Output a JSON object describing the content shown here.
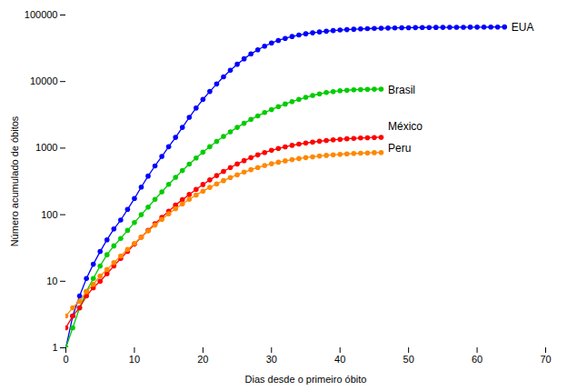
{
  "chart_data": {
    "type": "line",
    "xlabel": "Dias desde o primeiro óbito",
    "ylabel": "Número acumulado de óbitos",
    "log": "y",
    "grid": false,
    "marker": "circle",
    "line_style": "solid",
    "xlim": [
      0,
      70
    ],
    "ylim": [
      1,
      100000
    ],
    "xticks": [
      0,
      10,
      20,
      30,
      40,
      50,
      60,
      70
    ],
    "yticks": [
      1,
      10,
      100,
      1000,
      10000,
      100000
    ],
    "series": [
      {
        "name": "EUA",
        "color": "#0000FF",
        "x": [
          0,
          1,
          2,
          3,
          4,
          5,
          6,
          7,
          8,
          9,
          10,
          11,
          12,
          13,
          14,
          15,
          16,
          17,
          18,
          19,
          20,
          21,
          22,
          23,
          24,
          25,
          26,
          27,
          28,
          29,
          30,
          31,
          32,
          33,
          34,
          35,
          36,
          37,
          38,
          39,
          40,
          41,
          42,
          43,
          44,
          45,
          46,
          47,
          48,
          49,
          50,
          51,
          52,
          53,
          54,
          55,
          56,
          57,
          58,
          59,
          60,
          61,
          62,
          63,
          64
        ],
        "values": [
          1,
          3,
          6,
          11,
          18,
          28,
          42,
          61,
          83,
          120,
          175,
          260,
          380,
          540,
          750,
          1050,
          1450,
          2050,
          2900,
          4000,
          5400,
          7100,
          9200,
          11800,
          14800,
          18200,
          22000,
          26000,
          30000,
          34000,
          38000,
          41500,
          44500,
          47500,
          50000,
          52200,
          54000,
          55600,
          57000,
          58300,
          59400,
          60300,
          61100,
          61800,
          62400,
          62900,
          63300,
          63700,
          64000,
          64300,
          64500,
          64700,
          64900,
          65000,
          65100,
          65200,
          65300,
          65400,
          65500,
          65600,
          65700,
          65800,
          65900,
          66000,
          66100
        ]
      },
      {
        "name": "Brasil",
        "color": "#00CC00",
        "x": [
          0,
          1,
          2,
          3,
          4,
          5,
          6,
          7,
          8,
          9,
          10,
          11,
          12,
          13,
          14,
          15,
          16,
          17,
          18,
          19,
          20,
          21,
          22,
          23,
          24,
          25,
          26,
          27,
          28,
          29,
          30,
          31,
          32,
          33,
          34,
          35,
          36,
          37,
          38,
          39,
          40,
          41,
          42,
          43,
          44,
          45,
          46
        ],
        "values": [
          1,
          2,
          4,
          7,
          11,
          17,
          25,
          34,
          44,
          58,
          76,
          100,
          130,
          170,
          220,
          285,
          365,
          460,
          575,
          710,
          870,
          1050,
          1260,
          1500,
          1760,
          2050,
          2360,
          2700,
          3050,
          3420,
          3800,
          4200,
          4600,
          5000,
          5400,
          5800,
          6180,
          6530,
          6830,
          7080,
          7280,
          7420,
          7520,
          7590,
          7640,
          7680,
          7710
        ]
      },
      {
        "name": "México",
        "color": "#FF0000",
        "x": [
          0,
          1,
          2,
          3,
          4,
          5,
          6,
          7,
          8,
          9,
          10,
          11,
          12,
          13,
          14,
          15,
          16,
          17,
          18,
          19,
          20,
          21,
          22,
          23,
          24,
          25,
          26,
          27,
          28,
          29,
          30,
          31,
          32,
          33,
          34,
          35,
          36,
          37,
          38,
          39,
          40,
          41,
          42,
          43,
          44,
          45,
          46
        ],
        "values": [
          2,
          3,
          4,
          6,
          8,
          10,
          13,
          17,
          22,
          28,
          36,
          46,
          58,
          73,
          91,
          113,
          139,
          168,
          201,
          240,
          284,
          333,
          387,
          447,
          511,
          578,
          649,
          720,
          791,
          860,
          926,
          988,
          1046,
          1099,
          1148,
          1193,
          1233,
          1270,
          1302,
          1331,
          1357,
          1380,
          1400,
          1418,
          1433,
          1446,
          1457
        ]
      },
      {
        "name": "Peru",
        "color": "#FF8800",
        "x": [
          0,
          1,
          2,
          3,
          4,
          5,
          6,
          7,
          8,
          9,
          10,
          11,
          12,
          13,
          14,
          15,
          16,
          17,
          18,
          19,
          20,
          21,
          22,
          23,
          24,
          25,
          26,
          27,
          28,
          29,
          30,
          31,
          32,
          33,
          34,
          35,
          36,
          37,
          38,
          39,
          40,
          41,
          42,
          43,
          44,
          45,
          46
        ],
        "values": [
          3,
          4,
          5,
          7,
          9,
          12,
          15,
          19,
          24,
          30,
          37,
          46,
          57,
          70,
          85,
          103,
          123,
          145,
          170,
          197,
          226,
          257,
          290,
          325,
          361,
          398,
          436,
          474,
          512,
          548,
          582,
          614,
          644,
          672,
          697,
          720,
          741,
          760,
          777,
          793,
          807,
          819,
          830,
          839,
          847,
          854,
          860
        ]
      }
    ],
    "annotations": [
      {
        "text": "EUA",
        "x": 65,
        "y": 65000
      },
      {
        "text": "Brasil",
        "x": 47,
        "y": 7500
      },
      {
        "text": "México",
        "x": 47,
        "y": 2100
      },
      {
        "text": "Peru",
        "x": 47,
        "y": 1000
      }
    ]
  }
}
